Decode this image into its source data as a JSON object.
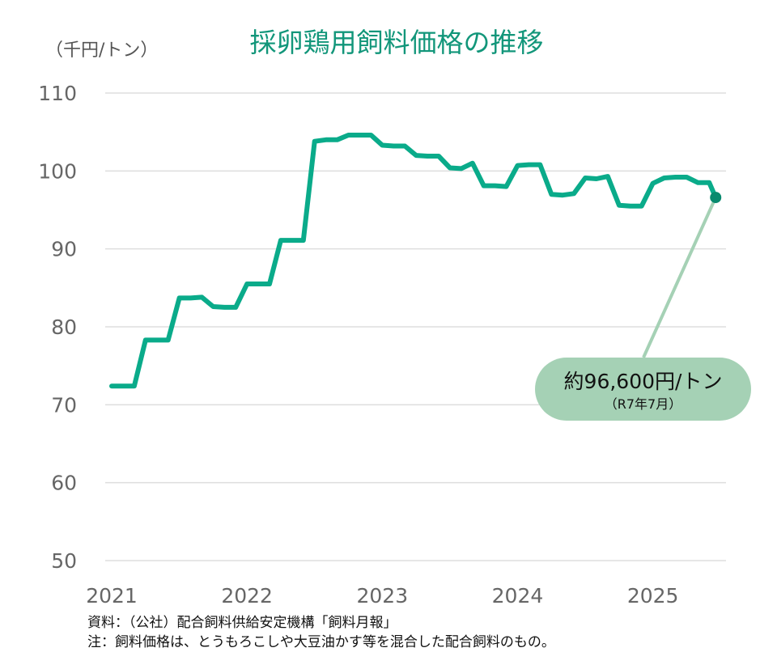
{
  "chart_data": {
    "type": "line",
    "title": "採卵鶏用飼料価格の推移",
    "ylabel": "（千円/トン）",
    "xlabel": "",
    "ylim": [
      50,
      110
    ],
    "yticks": [
      "110",
      "100",
      "90",
      "80",
      "70",
      "60",
      "50"
    ],
    "xticks": [
      "2021",
      "2022",
      "2023",
      "2024",
      "2025"
    ],
    "grid": true,
    "line_color": "#0aab8a",
    "x": [
      "2021-01",
      "2021-02",
      "2021-03",
      "2021-04",
      "2021-05",
      "2021-06",
      "2021-07",
      "2021-08",
      "2021-09",
      "2021-10",
      "2021-11",
      "2021-12",
      "2022-01",
      "2022-02",
      "2022-03",
      "2022-04",
      "2022-05",
      "2022-06",
      "2022-07",
      "2022-08",
      "2022-09",
      "2022-10",
      "2022-11",
      "2022-12",
      "2023-01",
      "2023-02",
      "2023-03",
      "2023-04",
      "2023-05",
      "2023-06",
      "2023-07",
      "2023-08",
      "2023-09",
      "2023-10",
      "2023-11",
      "2023-12",
      "2024-01",
      "2024-02",
      "2024-03",
      "2024-04",
      "2024-05",
      "2024-06",
      "2024-07",
      "2024-08",
      "2024-09",
      "2024-10",
      "2024-11",
      "2024-12",
      "2025-01",
      "2025-02",
      "2025-03",
      "2025-04",
      "2025-05",
      "2025-06",
      "2025-07"
    ],
    "values": [
      72.4,
      72.4,
      72.4,
      78.3,
      78.3,
      78.3,
      83.7,
      83.7,
      83.8,
      82.6,
      82.5,
      82.5,
      85.5,
      85.5,
      85.5,
      91.1,
      91.1,
      91.1,
      103.8,
      104.0,
      104.0,
      104.6,
      104.6,
      104.6,
      103.3,
      103.2,
      103.2,
      102.0,
      101.9,
      101.9,
      100.4,
      100.3,
      101.0,
      98.1,
      98.1,
      98.0,
      100.7,
      100.8,
      100.8,
      97.0,
      96.9,
      97.1,
      99.1,
      99.0,
      99.3,
      95.6,
      95.5,
      95.5,
      98.4,
      99.1,
      99.2,
      99.2,
      98.5,
      98.5,
      96.6
    ],
    "annotation": {
      "value_text": "約96,600円/トン",
      "date_text": "（R7年7月）",
      "color": "#a5d1b5",
      "marker_color": "#088a6e"
    }
  },
  "notes": {
    "source": "資料：（公社）配合飼料供給安定機構「飼料月報」",
    "note": "注：飼料価格は、とうもろこしや大豆油かす等を混合した配合飼料のもの。"
  }
}
